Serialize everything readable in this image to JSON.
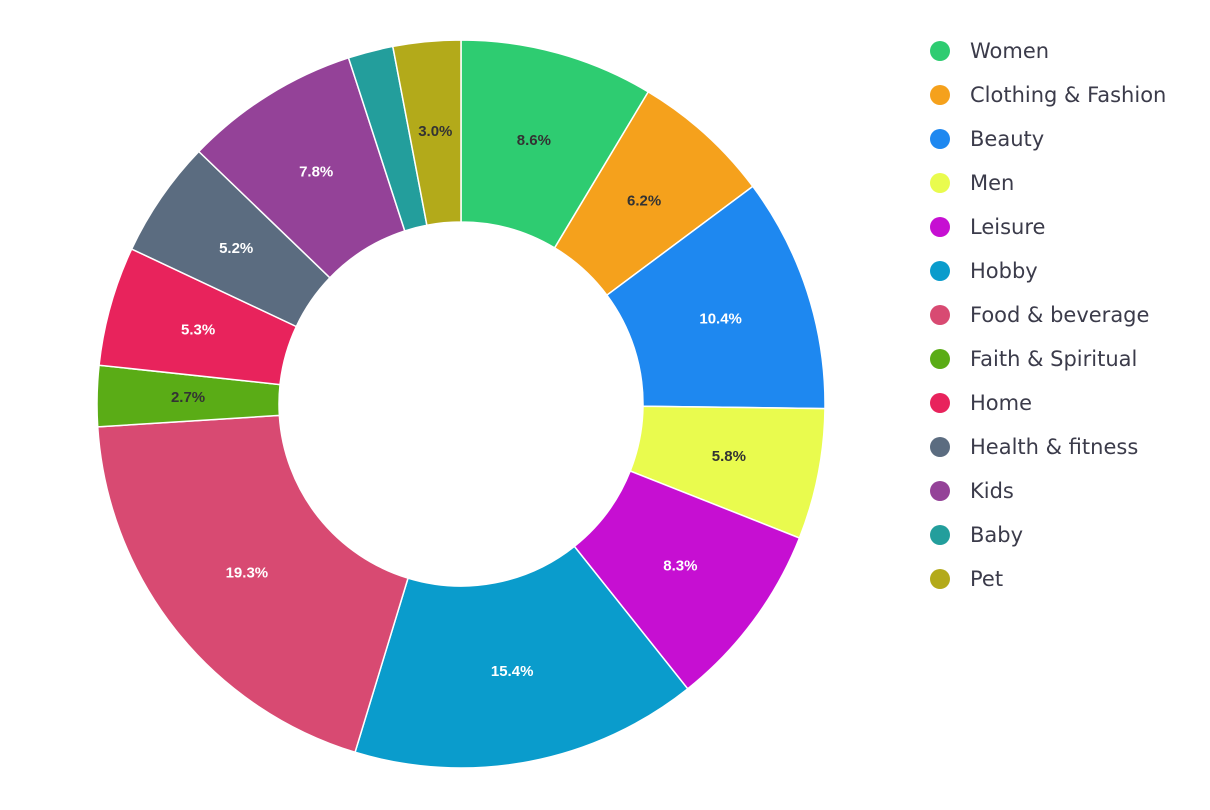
{
  "chart_data": {
    "type": "pie",
    "donut": true,
    "legend_position": "right",
    "slices": [
      {
        "name": "Women",
        "value": 8.6,
        "label": "8.6%",
        "color": "#2ecc71",
        "label_color": "#333333"
      },
      {
        "name": "Clothing & Fashion",
        "value": 6.2,
        "label": "6.2%",
        "color": "#f5a11c",
        "label_color": "#333333"
      },
      {
        "name": "Beauty",
        "value": 10.4,
        "label": "10.4%",
        "color": "#1e88f0",
        "label_color": "#ffffff"
      },
      {
        "name": "Men",
        "value": 5.8,
        "label": "5.8%",
        "color": "#e9fb4e",
        "label_color": "#333333"
      },
      {
        "name": "Leisure",
        "value": 8.3,
        "label": "8.3%",
        "color": "#c60fd2",
        "label_color": "#ffffff"
      },
      {
        "name": "Hobby",
        "value": 15.4,
        "label": "15.4%",
        "color": "#0a9ccc",
        "label_color": "#ffffff"
      },
      {
        "name": "Food & beverage",
        "value": 19.3,
        "label": "19.3%",
        "color": "#d84a72",
        "label_color": "#ffffff"
      },
      {
        "name": "Faith & Spiritual",
        "value": 2.7,
        "label": "2.7%",
        "color": "#5aac16",
        "label_color": "#333333"
      },
      {
        "name": "Home",
        "value": 5.3,
        "label": "5.3%",
        "color": "#e8235c",
        "label_color": "#ffffff"
      },
      {
        "name": "Health & fitness",
        "value": 5.2,
        "label": "5.2%",
        "color": "#5b6c80",
        "label_color": "#ffffff"
      },
      {
        "name": "Kids",
        "value": 7.8,
        "label": "7.8%",
        "color": "#944298",
        "label_color": "#ffffff"
      },
      {
        "name": "Baby",
        "value": 2.0,
        "label": "",
        "color": "#239e9c",
        "label_color": "#ffffff"
      },
      {
        "name": "Pet",
        "value": 3.0,
        "label": "3.0%",
        "color": "#b3aa1a",
        "label_color": "#333333"
      }
    ]
  }
}
